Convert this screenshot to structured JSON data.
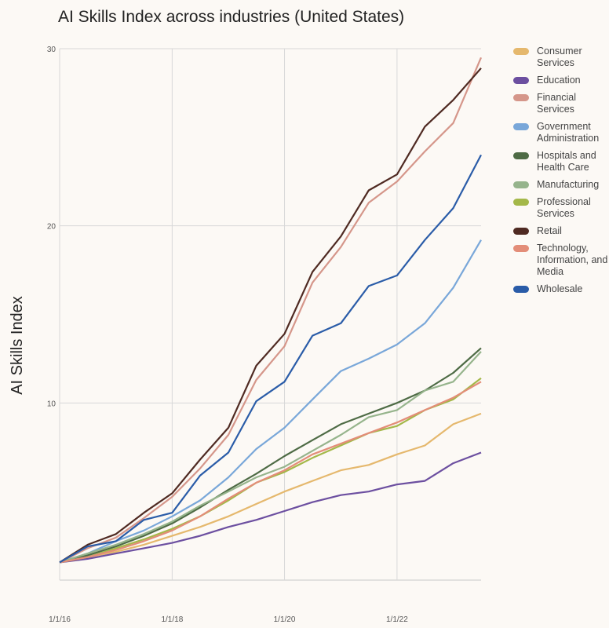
{
  "chart_data": {
    "type": "line",
    "title": "AI Skills Index across industries (United States)",
    "xlabel": "",
    "ylabel": "AI Skills Index",
    "x_range": [
      "2016-01-01",
      "2023-07-01"
    ],
    "ylim": [
      0,
      30
    ],
    "x_ticks": [
      {
        "label": "1/1/16",
        "date": "2016-01-01"
      },
      {
        "label": "1/1/18",
        "date": "2018-01-01"
      },
      {
        "label": "1/1/20",
        "date": "2020-01-01"
      },
      {
        "label": "1/1/22",
        "date": "2022-01-01"
      }
    ],
    "y_ticks": [
      {
        "label": "10",
        "value": 10
      },
      {
        "label": "20",
        "value": 20
      },
      {
        "label": "30",
        "value": 30
      }
    ],
    "grid": true,
    "legend_position": "right",
    "series": [
      {
        "name": "Consumer Services",
        "color": "#e5b86d",
        "points": [
          [
            "2016-01-01",
            1.0
          ],
          [
            "2016-07-01",
            1.3
          ],
          [
            "2017-01-01",
            1.6
          ],
          [
            "2017-07-01",
            2.0
          ],
          [
            "2018-01-01",
            2.5
          ],
          [
            "2018-07-01",
            3.0
          ],
          [
            "2019-01-01",
            3.6
          ],
          [
            "2019-07-01",
            4.3
          ],
          [
            "2020-01-01",
            5.0
          ],
          [
            "2020-07-01",
            5.6
          ],
          [
            "2021-01-01",
            6.2
          ],
          [
            "2021-07-01",
            6.5
          ],
          [
            "2022-01-01",
            7.1
          ],
          [
            "2022-07-01",
            7.6
          ],
          [
            "2023-01-01",
            8.8
          ],
          [
            "2023-07-01",
            9.4
          ]
        ]
      },
      {
        "name": "Education",
        "color": "#6c4fa0",
        "points": [
          [
            "2016-01-01",
            1.0
          ],
          [
            "2016-07-01",
            1.2
          ],
          [
            "2017-01-01",
            1.5
          ],
          [
            "2017-07-01",
            1.8
          ],
          [
            "2018-01-01",
            2.1
          ],
          [
            "2018-07-01",
            2.5
          ],
          [
            "2019-01-01",
            3.0
          ],
          [
            "2019-07-01",
            3.4
          ],
          [
            "2020-01-01",
            3.9
          ],
          [
            "2020-07-01",
            4.4
          ],
          [
            "2021-01-01",
            4.8
          ],
          [
            "2021-07-01",
            5.0
          ],
          [
            "2022-01-01",
            5.4
          ],
          [
            "2022-07-01",
            5.6
          ],
          [
            "2023-01-01",
            6.6
          ],
          [
            "2023-07-01",
            7.2
          ]
        ]
      },
      {
        "name": "Financial Services",
        "color": "#d5968a",
        "points": [
          [
            "2016-01-01",
            1.0
          ],
          [
            "2016-07-01",
            1.8
          ],
          [
            "2017-01-01",
            2.4
          ],
          [
            "2017-07-01",
            3.5
          ],
          [
            "2018-01-01",
            4.7
          ],
          [
            "2018-07-01",
            6.3
          ],
          [
            "2019-01-01",
            8.2
          ],
          [
            "2019-07-01",
            11.3
          ],
          [
            "2020-01-01",
            13.2
          ],
          [
            "2020-07-01",
            16.8
          ],
          [
            "2021-01-01",
            18.8
          ],
          [
            "2021-07-01",
            21.3
          ],
          [
            "2022-01-01",
            22.5
          ],
          [
            "2022-07-01",
            24.2
          ],
          [
            "2023-01-01",
            25.8
          ],
          [
            "2023-07-01",
            29.5
          ]
        ]
      },
      {
        "name": "Government Administration",
        "color": "#79a7d9",
        "points": [
          [
            "2016-01-01",
            1.0
          ],
          [
            "2016-07-01",
            1.5
          ],
          [
            "2017-01-01",
            2.2
          ],
          [
            "2017-07-01",
            2.8
          ],
          [
            "2018-01-01",
            3.6
          ],
          [
            "2018-07-01",
            4.5
          ],
          [
            "2019-01-01",
            5.8
          ],
          [
            "2019-07-01",
            7.4
          ],
          [
            "2020-01-01",
            8.6
          ],
          [
            "2020-07-01",
            10.2
          ],
          [
            "2021-01-01",
            11.8
          ],
          [
            "2021-07-01",
            12.5
          ],
          [
            "2022-01-01",
            13.3
          ],
          [
            "2022-07-01",
            14.5
          ],
          [
            "2023-01-01",
            16.5
          ],
          [
            "2023-07-01",
            19.2
          ]
        ]
      },
      {
        "name": "Hospitals and Health Care",
        "color": "#4e6b45",
        "points": [
          [
            "2016-01-01",
            1.0
          ],
          [
            "2016-07-01",
            1.4
          ],
          [
            "2017-01-01",
            1.9
          ],
          [
            "2017-07-01",
            2.5
          ],
          [
            "2018-01-01",
            3.2
          ],
          [
            "2018-07-01",
            4.1
          ],
          [
            "2019-01-01",
            5.1
          ],
          [
            "2019-07-01",
            6.0
          ],
          [
            "2020-01-01",
            7.0
          ],
          [
            "2020-07-01",
            7.9
          ],
          [
            "2021-01-01",
            8.8
          ],
          [
            "2021-07-01",
            9.4
          ],
          [
            "2022-01-01",
            10.0
          ],
          [
            "2022-07-01",
            10.7
          ],
          [
            "2023-01-01",
            11.7
          ],
          [
            "2023-07-01",
            13.1
          ]
        ]
      },
      {
        "name": "Manufacturing",
        "color": "#96b48c",
        "points": [
          [
            "2016-01-01",
            1.0
          ],
          [
            "2016-07-01",
            1.5
          ],
          [
            "2017-01-01",
            2.0
          ],
          [
            "2017-07-01",
            2.6
          ],
          [
            "2018-01-01",
            3.3
          ],
          [
            "2018-07-01",
            4.2
          ],
          [
            "2019-01-01",
            5.0
          ],
          [
            "2019-07-01",
            5.8
          ],
          [
            "2020-01-01",
            6.4
          ],
          [
            "2020-07-01",
            7.3
          ],
          [
            "2021-01-01",
            8.2
          ],
          [
            "2021-07-01",
            9.2
          ],
          [
            "2022-01-01",
            9.6
          ],
          [
            "2022-07-01",
            10.7
          ],
          [
            "2023-01-01",
            11.2
          ],
          [
            "2023-07-01",
            12.9
          ]
        ]
      },
      {
        "name": "Professional Services",
        "color": "#a4b849",
        "points": [
          [
            "2016-01-01",
            1.0
          ],
          [
            "2016-07-01",
            1.3
          ],
          [
            "2017-01-01",
            1.8
          ],
          [
            "2017-07-01",
            2.3
          ],
          [
            "2018-01-01",
            2.9
          ],
          [
            "2018-07-01",
            3.6
          ],
          [
            "2019-01-01",
            4.5
          ],
          [
            "2019-07-01",
            5.5
          ],
          [
            "2020-01-01",
            6.1
          ],
          [
            "2020-07-01",
            6.9
          ],
          [
            "2021-01-01",
            7.6
          ],
          [
            "2021-07-01",
            8.3
          ],
          [
            "2022-01-01",
            8.7
          ],
          [
            "2022-07-01",
            9.6
          ],
          [
            "2023-01-01",
            10.2
          ],
          [
            "2023-07-01",
            11.4
          ]
        ]
      },
      {
        "name": "Retail",
        "color": "#4f2a22",
        "points": [
          [
            "2016-01-01",
            1.0
          ],
          [
            "2016-07-01",
            2.0
          ],
          [
            "2017-01-01",
            2.6
          ],
          [
            "2017-07-01",
            3.8
          ],
          [
            "2018-01-01",
            4.9
          ],
          [
            "2018-07-01",
            6.8
          ],
          [
            "2019-01-01",
            8.6
          ],
          [
            "2019-07-01",
            12.1
          ],
          [
            "2020-01-01",
            13.9
          ],
          [
            "2020-07-01",
            17.4
          ],
          [
            "2021-01-01",
            19.4
          ],
          [
            "2021-07-01",
            22.0
          ],
          [
            "2022-01-01",
            22.9
          ],
          [
            "2022-07-01",
            25.6
          ],
          [
            "2023-01-01",
            27.1
          ],
          [
            "2023-07-01",
            28.9
          ]
        ]
      },
      {
        "name": "Technology, Information, and Media",
        "color": "#e38d78",
        "points": [
          [
            "2016-01-01",
            1.0
          ],
          [
            "2016-07-01",
            1.3
          ],
          [
            "2017-01-01",
            1.7
          ],
          [
            "2017-07-01",
            2.2
          ],
          [
            "2018-01-01",
            2.8
          ],
          [
            "2018-07-01",
            3.6
          ],
          [
            "2019-01-01",
            4.6
          ],
          [
            "2019-07-01",
            5.5
          ],
          [
            "2020-01-01",
            6.2
          ],
          [
            "2020-07-01",
            7.1
          ],
          [
            "2021-01-01",
            7.7
          ],
          [
            "2021-07-01",
            8.3
          ],
          [
            "2022-01-01",
            8.9
          ],
          [
            "2022-07-01",
            9.6
          ],
          [
            "2023-01-01",
            10.3
          ],
          [
            "2023-07-01",
            11.2
          ]
        ]
      },
      {
        "name": "Wholesale",
        "color": "#2a5ca8",
        "points": [
          [
            "2016-01-01",
            1.0
          ],
          [
            "2016-07-01",
            1.9
          ],
          [
            "2017-01-01",
            2.2
          ],
          [
            "2017-07-01",
            3.4
          ],
          [
            "2018-01-01",
            3.8
          ],
          [
            "2018-07-01",
            5.9
          ],
          [
            "2019-01-01",
            7.2
          ],
          [
            "2019-07-01",
            10.1
          ],
          [
            "2020-01-01",
            11.2
          ],
          [
            "2020-07-01",
            13.8
          ],
          [
            "2021-01-01",
            14.5
          ],
          [
            "2021-07-01",
            16.6
          ],
          [
            "2022-01-01",
            17.2
          ],
          [
            "2022-07-01",
            19.2
          ],
          [
            "2023-01-01",
            21.0
          ],
          [
            "2023-07-01",
            24.0
          ]
        ]
      }
    ]
  }
}
